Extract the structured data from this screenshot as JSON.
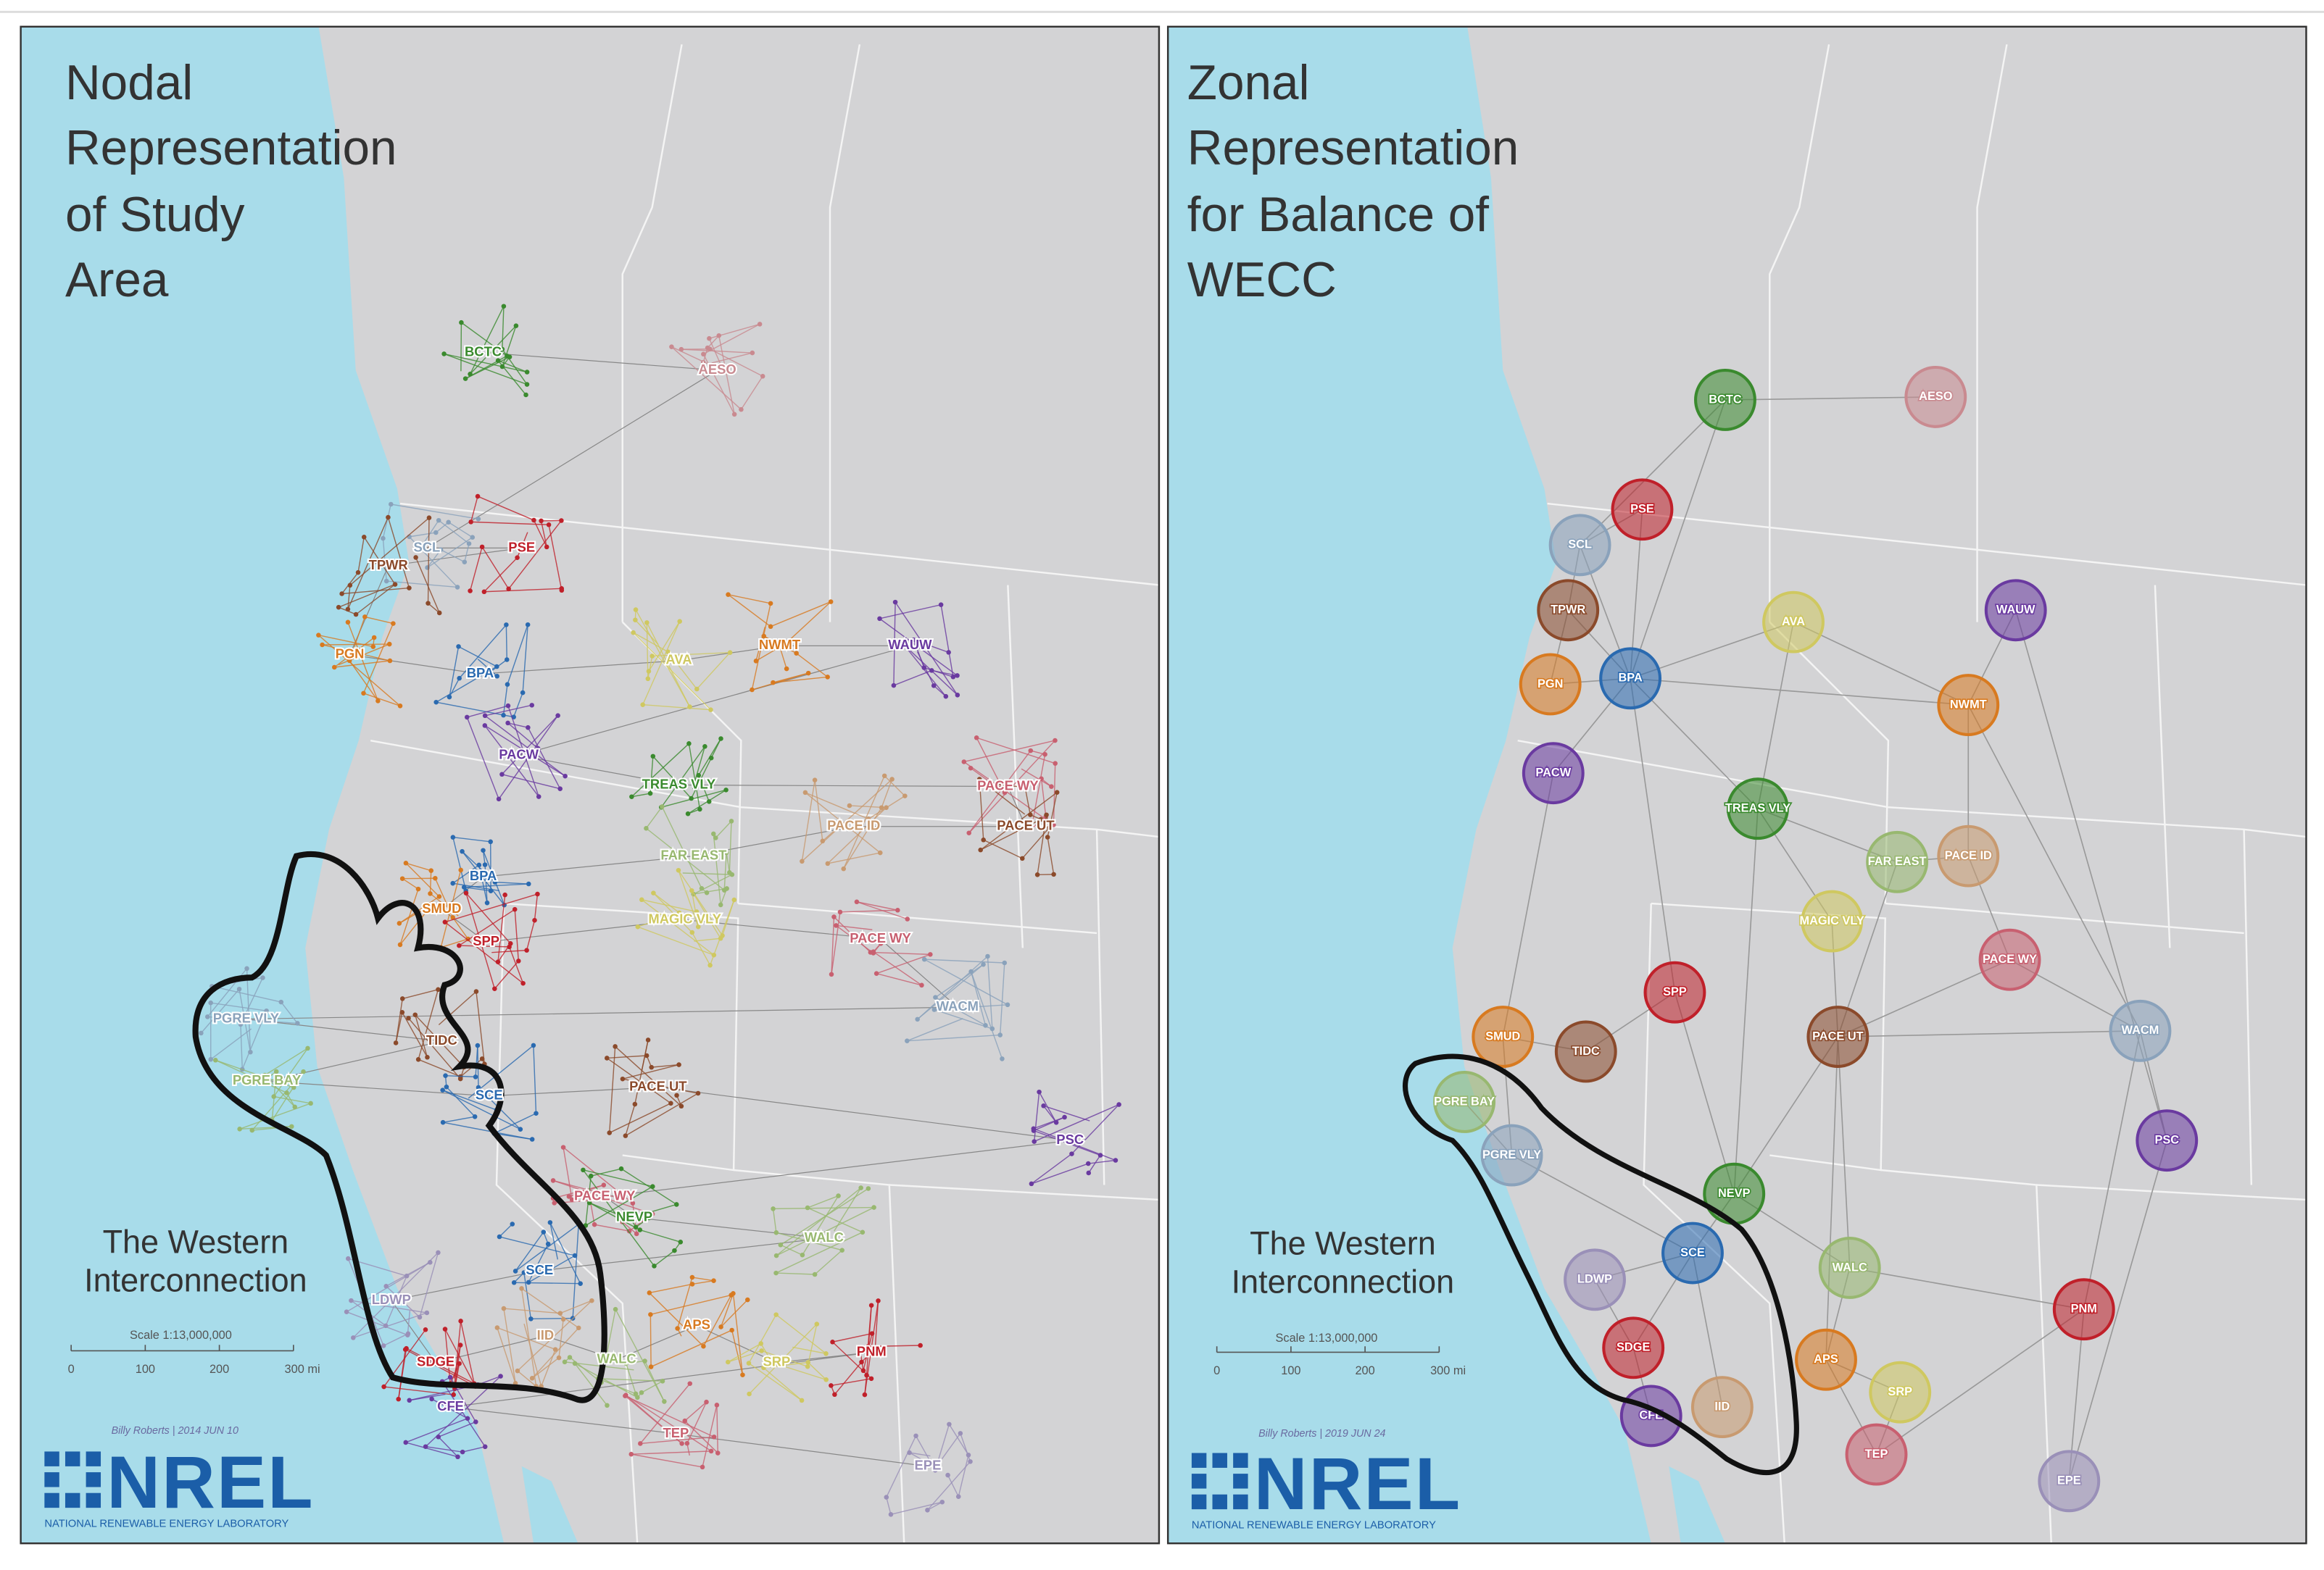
{
  "left_panel": {
    "title": [
      "Nodal",
      "Representation",
      "of Study",
      "Area"
    ],
    "subtitle": [
      "The Western",
      "Interconnection"
    ],
    "scale": {
      "title": "Scale 1:13,000,000",
      "labels": [
        "0",
        "100",
        "200",
        "300 mi"
      ]
    },
    "credit": "Billy Roberts | 2014 JUN 10",
    "logo": "NREL",
    "logo_caption": "NATIONAL RENEWABLE ENERGY LABORATORY",
    "zones": [
      "BCTC",
      "AESO",
      "SCL",
      "PSE",
      "TPWR",
      "PGN",
      "BPA",
      "AVA",
      "NWMT",
      "WAUW",
      "PACW",
      "TREAS VLY",
      "PACE WY",
      "PACE UT",
      "PACE ID",
      "FAR EAST",
      "BPA",
      "SMUD",
      "SPP",
      "MAGIC VLY",
      "PACE WY",
      "WACM",
      "PGRE VLY",
      "TIDC",
      "PGRE BAY",
      "SCE",
      "PACE UT",
      "PSC",
      "PACE WY",
      "NEVP",
      "WALC",
      "SCE",
      "LDWP",
      "SDGE",
      "IID",
      "WALC",
      "APS",
      "SRP",
      "PNM",
      "CFE",
      "TEP",
      "EPE"
    ]
  },
  "right_panel": {
    "title": [
      "Zonal",
      "Representation",
      "for Balance of",
      "WECC"
    ],
    "subtitle": [
      "The Western",
      "Interconnection"
    ],
    "scale": {
      "title": "Scale 1:13,000,000",
      "labels": [
        "0",
        "100",
        "200",
        "300 mi"
      ]
    },
    "credit": "Billy Roberts | 2019 JUN 24",
    "logo": "NREL",
    "logo_caption": "NATIONAL RENEWABLE ENERGY LABORATORY",
    "zones": [
      "BCTC",
      "AESO",
      "PSE",
      "SCL",
      "TPWR",
      "AVA",
      "WAUW",
      "PGN",
      "BPA",
      "NWMT",
      "PACW",
      "TREAS VLY",
      "FAR EAST",
      "PACE ID",
      "MAGIC VLY",
      "PACE WY",
      "SPP",
      "SMUD",
      "TIDC",
      "PACE UT",
      "WACM",
      "PGRE BAY",
      "PGRE VLY",
      "NEVP",
      "PSC",
      "SCE",
      "WALC",
      "LDWP",
      "PNM",
      "SDGE",
      "APS",
      "SRP",
      "IID",
      "CFE",
      "TEP",
      "EPE"
    ]
  }
}
